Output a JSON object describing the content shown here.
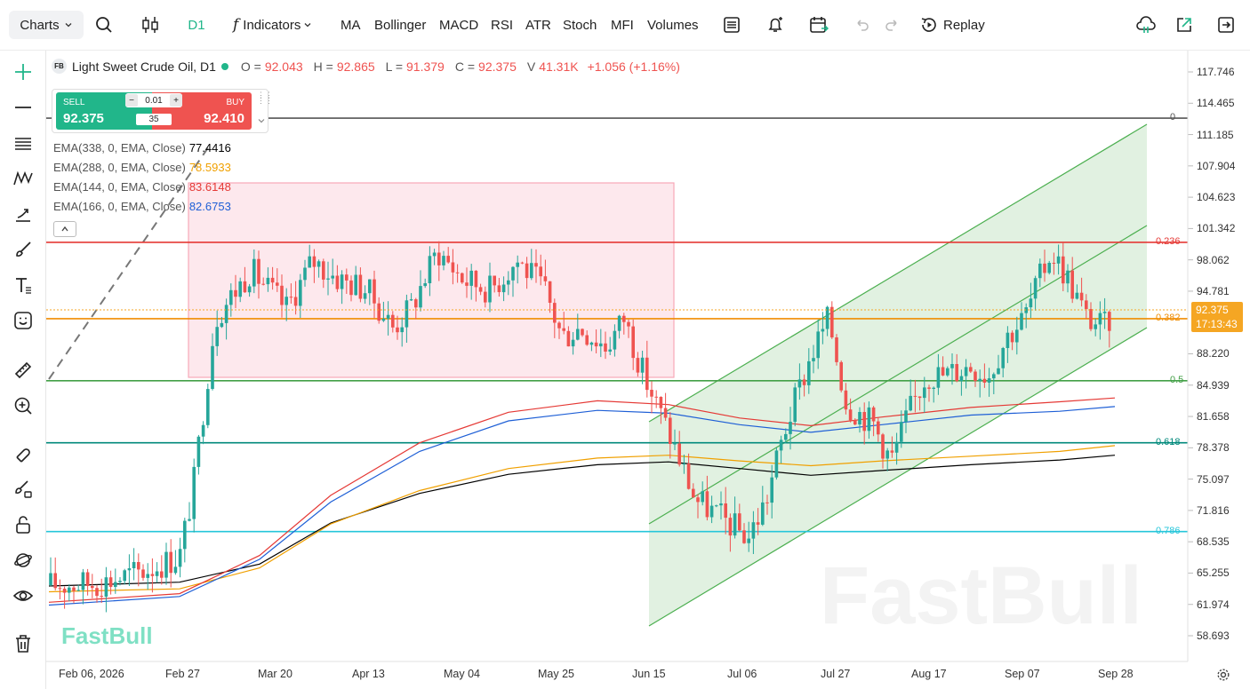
{
  "toolbar": {
    "charts_label": "Charts",
    "timeframe": "D1",
    "indicators_label": "Indicators",
    "studies": [
      "MA",
      "Bollinger",
      "MACD",
      "RSI",
      "ATR",
      "Stoch",
      "MFI",
      "Volumes"
    ],
    "replay_label": "Replay"
  },
  "legend": {
    "symbol_badge": "FB",
    "symbol": "Light Sweet Crude Oil, D1",
    "o_label": "O =",
    "o": "92.043",
    "h_label": "H =",
    "h": "92.865",
    "l_label": "L =",
    "l": "91.379",
    "c_label": "C =",
    "c": "92.375",
    "v_label": "V",
    "v": "41.31K",
    "change": "+1.056 (+1.16%)"
  },
  "trade": {
    "sell_label": "SELL",
    "sell_price": "92.375",
    "buy_label": "BUY",
    "buy_price": "92.410",
    "lot": "0.01",
    "spread": "35"
  },
  "ema": [
    {
      "label": "EMA(338, 0, EMA, Close)",
      "value": "77.4416",
      "color": "#000000"
    },
    {
      "label": "EMA(288, 0, EMA, Close)",
      "value": "78.5933",
      "color": "#f0a000"
    },
    {
      "label": "EMA(144, 0, EMA, Close)",
      "value": "83.6148",
      "color": "#e53935"
    },
    {
      "label": "EMA(166, 0, EMA, Close)",
      "value": "82.6753",
      "color": "#1e5fd6"
    }
  ],
  "price_axis": [
    "117.746",
    "114.465",
    "111.185",
    "107.904",
    "104.623",
    "101.342",
    "98.062",
    "94.781",
    "88.220",
    "84.939",
    "81.658",
    "78.378",
    "75.097",
    "71.816",
    "68.535",
    "65.255",
    "61.974",
    "58.693"
  ],
  "current_price": {
    "price": "92.375",
    "countdown": "17:13:43",
    "color": "#f5a623"
  },
  "time_axis": [
    "Feb 06, 2026",
    "Feb 27",
    "Mar 20",
    "Apr 13",
    "May 04",
    "May 25",
    "Jun 15",
    "Jul 06",
    "Jul 27",
    "Aug 17",
    "Sep 07",
    "Sep 28"
  ],
  "fib_levels": [
    {
      "label": "0",
      "price": 112.9,
      "color": "#555555"
    },
    {
      "label": "0.236",
      "price": 99.9,
      "color": "#e53935"
    },
    {
      "label": "0.382",
      "price": 91.9,
      "color": "#f08c00"
    },
    {
      "label": "0.5",
      "price": 85.4,
      "color": "#43a047"
    },
    {
      "label": "0.618",
      "price": 78.9,
      "color": "#00897b"
    },
    {
      "label": "0.786",
      "price": 69.6,
      "color": "#26c6da"
    }
  ],
  "watermark": "FastBull",
  "colors": {
    "up": "#26a69a",
    "down": "#ef5350",
    "accent": "#21b68a"
  }
}
